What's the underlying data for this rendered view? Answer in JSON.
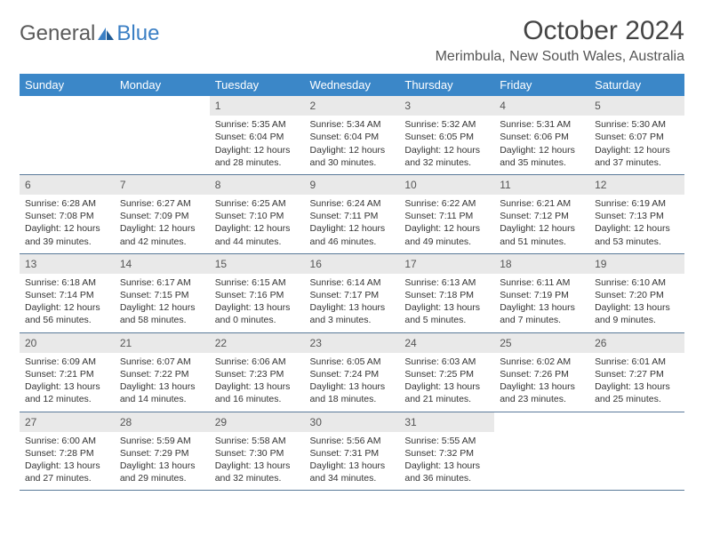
{
  "logo": {
    "general": "General",
    "blue": "Blue"
  },
  "title": "October 2024",
  "location": "Merimbula, New South Wales, Australia",
  "colors": {
    "header_bg": "#3b87c8",
    "daynum_bg": "#e9e9e9",
    "border": "#5a7a9a",
    "logo_blue": "#3b7fc4",
    "logo_gray": "#5a5a5a"
  },
  "day_headers": [
    "Sunday",
    "Monday",
    "Tuesday",
    "Wednesday",
    "Thursday",
    "Friday",
    "Saturday"
  ],
  "weeks": [
    [
      {
        "n": "",
        "sr": "",
        "ss": "",
        "dl": ""
      },
      {
        "n": "",
        "sr": "",
        "ss": "",
        "dl": ""
      },
      {
        "n": "1",
        "sr": "Sunrise: 5:35 AM",
        "ss": "Sunset: 6:04 PM",
        "dl": "Daylight: 12 hours and 28 minutes."
      },
      {
        "n": "2",
        "sr": "Sunrise: 5:34 AM",
        "ss": "Sunset: 6:04 PM",
        "dl": "Daylight: 12 hours and 30 minutes."
      },
      {
        "n": "3",
        "sr": "Sunrise: 5:32 AM",
        "ss": "Sunset: 6:05 PM",
        "dl": "Daylight: 12 hours and 32 minutes."
      },
      {
        "n": "4",
        "sr": "Sunrise: 5:31 AM",
        "ss": "Sunset: 6:06 PM",
        "dl": "Daylight: 12 hours and 35 minutes."
      },
      {
        "n": "5",
        "sr": "Sunrise: 5:30 AM",
        "ss": "Sunset: 6:07 PM",
        "dl": "Daylight: 12 hours and 37 minutes."
      }
    ],
    [
      {
        "n": "6",
        "sr": "Sunrise: 6:28 AM",
        "ss": "Sunset: 7:08 PM",
        "dl": "Daylight: 12 hours and 39 minutes."
      },
      {
        "n": "7",
        "sr": "Sunrise: 6:27 AM",
        "ss": "Sunset: 7:09 PM",
        "dl": "Daylight: 12 hours and 42 minutes."
      },
      {
        "n": "8",
        "sr": "Sunrise: 6:25 AM",
        "ss": "Sunset: 7:10 PM",
        "dl": "Daylight: 12 hours and 44 minutes."
      },
      {
        "n": "9",
        "sr": "Sunrise: 6:24 AM",
        "ss": "Sunset: 7:11 PM",
        "dl": "Daylight: 12 hours and 46 minutes."
      },
      {
        "n": "10",
        "sr": "Sunrise: 6:22 AM",
        "ss": "Sunset: 7:11 PM",
        "dl": "Daylight: 12 hours and 49 minutes."
      },
      {
        "n": "11",
        "sr": "Sunrise: 6:21 AM",
        "ss": "Sunset: 7:12 PM",
        "dl": "Daylight: 12 hours and 51 minutes."
      },
      {
        "n": "12",
        "sr": "Sunrise: 6:19 AM",
        "ss": "Sunset: 7:13 PM",
        "dl": "Daylight: 12 hours and 53 minutes."
      }
    ],
    [
      {
        "n": "13",
        "sr": "Sunrise: 6:18 AM",
        "ss": "Sunset: 7:14 PM",
        "dl": "Daylight: 12 hours and 56 minutes."
      },
      {
        "n": "14",
        "sr": "Sunrise: 6:17 AM",
        "ss": "Sunset: 7:15 PM",
        "dl": "Daylight: 12 hours and 58 minutes."
      },
      {
        "n": "15",
        "sr": "Sunrise: 6:15 AM",
        "ss": "Sunset: 7:16 PM",
        "dl": "Daylight: 13 hours and 0 minutes."
      },
      {
        "n": "16",
        "sr": "Sunrise: 6:14 AM",
        "ss": "Sunset: 7:17 PM",
        "dl": "Daylight: 13 hours and 3 minutes."
      },
      {
        "n": "17",
        "sr": "Sunrise: 6:13 AM",
        "ss": "Sunset: 7:18 PM",
        "dl": "Daylight: 13 hours and 5 minutes."
      },
      {
        "n": "18",
        "sr": "Sunrise: 6:11 AM",
        "ss": "Sunset: 7:19 PM",
        "dl": "Daylight: 13 hours and 7 minutes."
      },
      {
        "n": "19",
        "sr": "Sunrise: 6:10 AM",
        "ss": "Sunset: 7:20 PM",
        "dl": "Daylight: 13 hours and 9 minutes."
      }
    ],
    [
      {
        "n": "20",
        "sr": "Sunrise: 6:09 AM",
        "ss": "Sunset: 7:21 PM",
        "dl": "Daylight: 13 hours and 12 minutes."
      },
      {
        "n": "21",
        "sr": "Sunrise: 6:07 AM",
        "ss": "Sunset: 7:22 PM",
        "dl": "Daylight: 13 hours and 14 minutes."
      },
      {
        "n": "22",
        "sr": "Sunrise: 6:06 AM",
        "ss": "Sunset: 7:23 PM",
        "dl": "Daylight: 13 hours and 16 minutes."
      },
      {
        "n": "23",
        "sr": "Sunrise: 6:05 AM",
        "ss": "Sunset: 7:24 PM",
        "dl": "Daylight: 13 hours and 18 minutes."
      },
      {
        "n": "24",
        "sr": "Sunrise: 6:03 AM",
        "ss": "Sunset: 7:25 PM",
        "dl": "Daylight: 13 hours and 21 minutes."
      },
      {
        "n": "25",
        "sr": "Sunrise: 6:02 AM",
        "ss": "Sunset: 7:26 PM",
        "dl": "Daylight: 13 hours and 23 minutes."
      },
      {
        "n": "26",
        "sr": "Sunrise: 6:01 AM",
        "ss": "Sunset: 7:27 PM",
        "dl": "Daylight: 13 hours and 25 minutes."
      }
    ],
    [
      {
        "n": "27",
        "sr": "Sunrise: 6:00 AM",
        "ss": "Sunset: 7:28 PM",
        "dl": "Daylight: 13 hours and 27 minutes."
      },
      {
        "n": "28",
        "sr": "Sunrise: 5:59 AM",
        "ss": "Sunset: 7:29 PM",
        "dl": "Daylight: 13 hours and 29 minutes."
      },
      {
        "n": "29",
        "sr": "Sunrise: 5:58 AM",
        "ss": "Sunset: 7:30 PM",
        "dl": "Daylight: 13 hours and 32 minutes."
      },
      {
        "n": "30",
        "sr": "Sunrise: 5:56 AM",
        "ss": "Sunset: 7:31 PM",
        "dl": "Daylight: 13 hours and 34 minutes."
      },
      {
        "n": "31",
        "sr": "Sunrise: 5:55 AM",
        "ss": "Sunset: 7:32 PM",
        "dl": "Daylight: 13 hours and 36 minutes."
      },
      {
        "n": "",
        "sr": "",
        "ss": "",
        "dl": ""
      },
      {
        "n": "",
        "sr": "",
        "ss": "",
        "dl": ""
      }
    ]
  ]
}
